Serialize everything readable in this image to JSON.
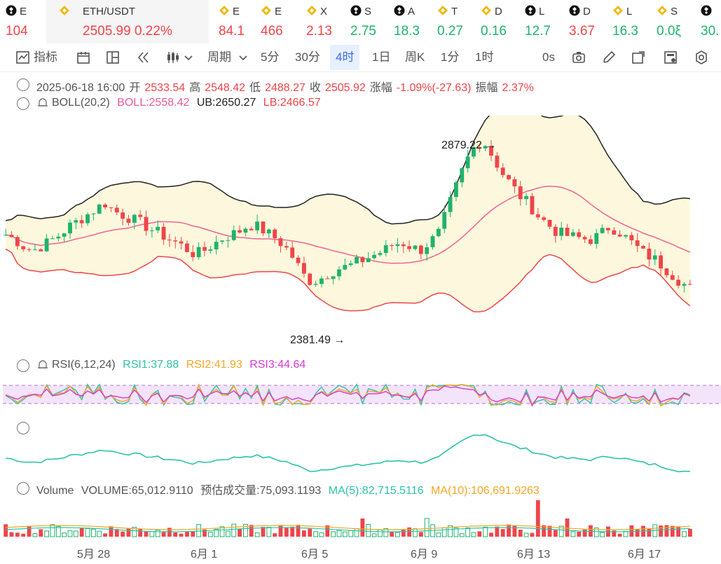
{
  "ticker": [
    {
      "name": "E",
      "value": "104",
      "trend": "down",
      "icon": "binance-icon"
    },
    {
      "name": "ETH/USDT",
      "value": "2505.99",
      "change": "0.22%",
      "trend": "down",
      "icon": "bnb-icon",
      "active": true
    },
    {
      "name": "E",
      "value": "84.1",
      "trend": "down",
      "icon": "bnb-icon"
    },
    {
      "name": "E",
      "value": "466",
      "trend": "down",
      "icon": "bnb-icon"
    },
    {
      "name": "X",
      "value": "2.13",
      "trend": "down",
      "icon": "bnb-icon"
    },
    {
      "name": "S",
      "value": "2.75",
      "trend": "up",
      "icon": "binance-icon"
    },
    {
      "name": "A",
      "value": "18.3",
      "trend": "up",
      "icon": "binance-icon"
    },
    {
      "name": "T",
      "value": "0.27",
      "trend": "up",
      "icon": "bnb-icon"
    },
    {
      "name": "D",
      "value": "0.16",
      "trend": "up",
      "icon": "bnb-icon"
    },
    {
      "name": "L",
      "value": "12.7",
      "trend": "up",
      "icon": "binance-icon"
    },
    {
      "name": "D",
      "value": "3.67",
      "trend": "down",
      "icon": "binance-icon"
    },
    {
      "name": "L",
      "value": "16.3",
      "trend": "up",
      "icon": "bnb-icon"
    },
    {
      "name": "S",
      "value": "0.0ξ",
      "trend": "up",
      "icon": "bnb-icon"
    },
    {
      "name": "",
      "value": "30.",
      "trend": "up",
      "icon": "binance-icon"
    }
  ],
  "toolbar": {
    "indicators": "指标",
    "period": "周期",
    "intervals": [
      "5分",
      "30分",
      "4时",
      "1日",
      "周K",
      "1分",
      "1时"
    ],
    "selected_interval": "4时",
    "countdown": "0s"
  },
  "ohlc": {
    "datetime": "2025-06-18 16:00",
    "open_label": "开",
    "open": "2533.54",
    "high_label": "高",
    "high": "2548.42",
    "low_label": "低",
    "low": "2488.27",
    "close_label": "收",
    "close": "2505.92",
    "change_label": "涨幅",
    "change": "-1.09%(-27.63)",
    "amp_label": "振幅",
    "amp": "2.37%"
  },
  "boll": {
    "name": "BOLL(20,2)",
    "boll": "BOLL:2558.42",
    "ub": "UB:2650.27",
    "lb": "LB:2466.57",
    "colors": {
      "mid": "#f06292",
      "ub": "#222222",
      "lb": "#ef454a",
      "fill": "#fdf8dd"
    }
  },
  "rsi": {
    "name": "RSI(6,12,24)",
    "rsi1": "RSI1:37.88",
    "rsi2": "RSI2:41.93",
    "rsi3": "RSI3:44.64",
    "colors": {
      "rsi1": "#2bc4a8",
      "rsi2": "#f5a623",
      "rsi3": "#d63ad6"
    }
  },
  "volume": {
    "name": "Volume",
    "vol": "VOLUME:65,012.9110",
    "est": "预估成交量:75,093.1193",
    "ma5": "MA(5):82,715.5116",
    "ma10": "MA(10):106,691.9263"
  },
  "chart_data": {
    "type": "candlestick",
    "high_marker": "2879.22",
    "low_marker": "2381.49",
    "x_ticks": [
      "5月 28",
      "6月 1",
      "6月 5",
      "6月 9",
      "6月 13",
      "6月 17"
    ],
    "close_path": [
      2640,
      2628,
      2610,
      2600,
      2612,
      2625,
      2640,
      2660,
      2675,
      2690,
      2705,
      2720,
      2700,
      2690,
      2680,
      2670,
      2655,
      2645,
      2630,
      2620,
      2605,
      2590,
      2600,
      2615,
      2630,
      2640,
      2650,
      2665,
      2660,
      2645,
      2630,
      2610,
      2580,
      2540,
      2520,
      2530,
      2545,
      2555,
      2560,
      2570,
      2580,
      2590,
      2600,
      2615,
      2620,
      2610,
      2600,
      2620,
      2640,
      2700,
      2760,
      2820,
      2860,
      2879,
      2840,
      2800,
      2770,
      2740,
      2720,
      2690,
      2670,
      2650,
      2640,
      2635,
      2630,
      2628,
      2640,
      2660,
      2650,
      2630,
      2610,
      2590,
      2580,
      2560,
      2540,
      2520,
      2505
    ]
  },
  "colors": {
    "up": "#20b26c",
    "down": "#ef454a",
    "accent": "#3a6cf4"
  }
}
